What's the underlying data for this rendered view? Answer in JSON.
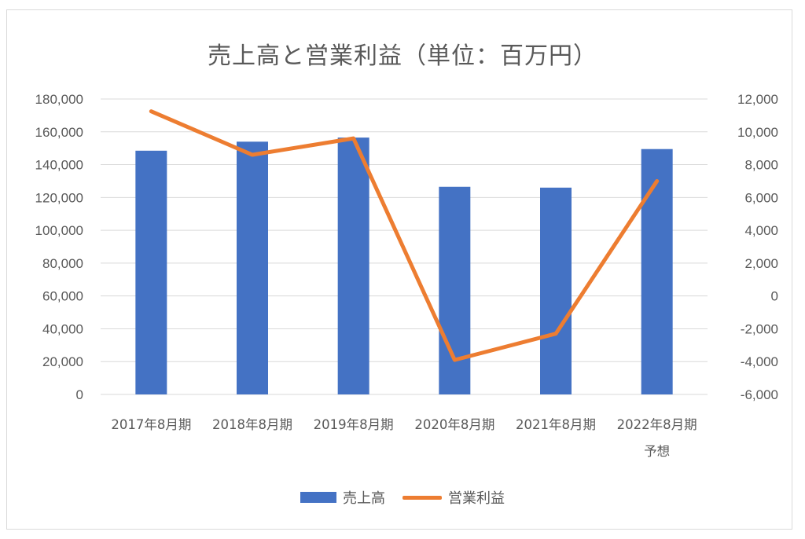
{
  "chart_data": {
    "type": "bar",
    "title": "売上高と営業利益（単位：百万円）",
    "categories": [
      [
        "2017年8月期"
      ],
      [
        "2018年8月期"
      ],
      [
        "2019年8月期"
      ],
      [
        "2020年8月期"
      ],
      [
        "2021年8月期"
      ],
      [
        "2022年8月期",
        "予想"
      ]
    ],
    "series": [
      {
        "name": "売上高",
        "type": "bar",
        "axis": "left",
        "color": "#4472C4",
        "values": [
          148500,
          154000,
          156500,
          126500,
          126000,
          149500
        ]
      },
      {
        "name": "営業利益",
        "type": "line",
        "axis": "right",
        "color": "#ED7D31",
        "values": [
          11250,
          8600,
          9600,
          -3900,
          -2300,
          7000
        ]
      }
    ],
    "y_left": {
      "range": [
        0,
        180000
      ],
      "ticks": [
        0,
        20000,
        40000,
        60000,
        80000,
        100000,
        120000,
        140000,
        160000,
        180000
      ],
      "tick_labels": [
        "0",
        "20,000",
        "40,000",
        "60,000",
        "80,000",
        "100,000",
        "120,000",
        "140,000",
        "160,000",
        "180,000"
      ]
    },
    "y_right": {
      "range": [
        -6000,
        12000
      ],
      "ticks": [
        -6000,
        -4000,
        -2000,
        0,
        2000,
        4000,
        6000,
        8000,
        10000,
        12000
      ],
      "tick_labels": [
        "-6,000",
        "-4,000",
        "-2,000",
        "0",
        "2,000",
        "4,000",
        "6,000",
        "8,000",
        "10,000",
        "12,000"
      ]
    },
    "grid": true,
    "legend_position": "bottom"
  }
}
